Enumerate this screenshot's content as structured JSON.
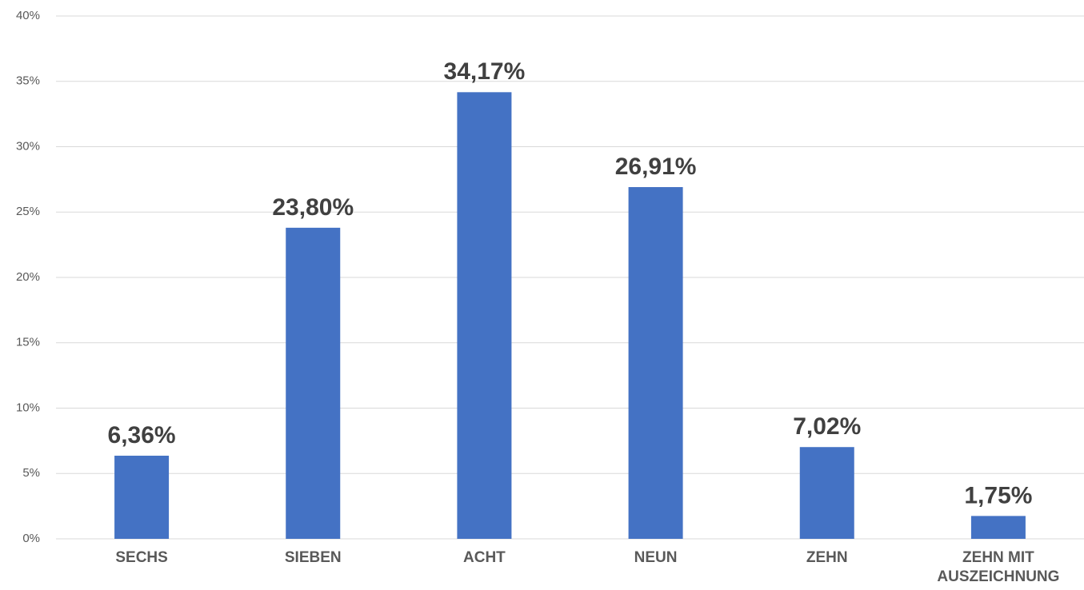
{
  "chart_data": {
    "type": "bar",
    "categories": [
      "SECHS",
      "SIEBEN",
      "ACHT",
      "NEUN",
      "ZEHN",
      "ZEHN MIT AUSZEICHNUNG"
    ],
    "values": [
      6.36,
      23.8,
      34.17,
      26.91,
      7.02,
      1.75
    ],
    "value_labels": [
      "6,36%",
      "23,80%",
      "34,17%",
      "26,91%",
      "7,02%",
      "1,75%"
    ],
    "color": "#4472c4",
    "ylim": [
      0,
      40
    ],
    "yticks": [
      {
        "value": 0,
        "label": "0%"
      },
      {
        "value": 5,
        "label": "5%"
      },
      {
        "value": 10,
        "label": "10%"
      },
      {
        "value": 15,
        "label": "15%"
      },
      {
        "value": 20,
        "label": "20%"
      },
      {
        "value": 25,
        "label": "25%"
      },
      {
        "value": 30,
        "label": "30%"
      },
      {
        "value": 35,
        "label": "35%"
      },
      {
        "value": 40,
        "label": "40%"
      }
    ],
    "grid": true
  }
}
